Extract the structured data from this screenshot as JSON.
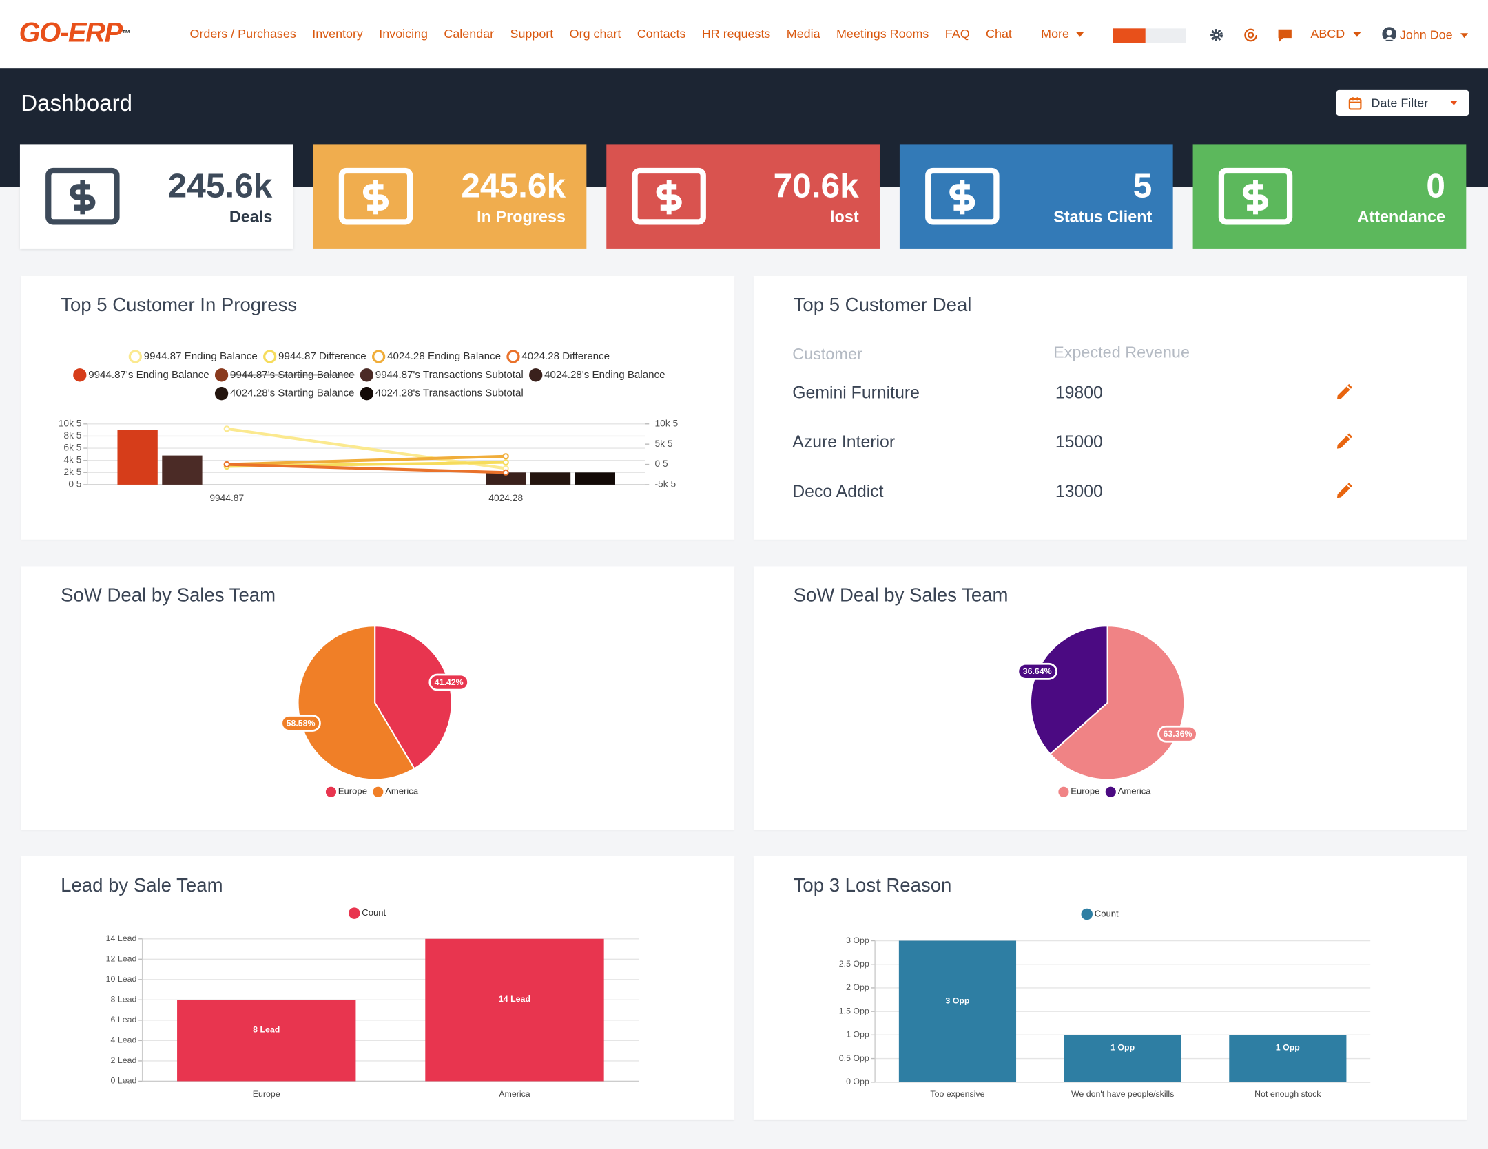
{
  "nav": {
    "logo": "GO-ERP",
    "logo_mark": "™",
    "menu": [
      "Orders / Purchases",
      "Inventory",
      "Invoicing",
      "Calendar",
      "Support",
      "Org chart",
      "Contacts",
      "HR requests",
      "Media",
      "Meetings Rooms",
      "FAQ",
      "Chat"
    ],
    "more": "More",
    "company": "ABCD",
    "user": "John Doe"
  },
  "header": {
    "title": "Dashboard",
    "date_filter": "Date Filter"
  },
  "stats": [
    {
      "value": "245.6k",
      "label": "Deals"
    },
    {
      "value": "245.6k",
      "label": "In Progress"
    },
    {
      "value": "70.6k",
      "label": "lost"
    },
    {
      "value": "5",
      "label": "Status Client"
    },
    {
      "value": "0",
      "label": "Attendance"
    }
  ],
  "top_customer_deal": {
    "title": "Top 5 Customer Deal",
    "columns": [
      "Customer",
      "Expected Revenue"
    ],
    "rows": [
      [
        "Gemini Furniture",
        19800
      ],
      [
        "Azure Interior",
        15000
      ],
      [
        "Deco Addict",
        13000
      ]
    ]
  },
  "chart_data": [
    {
      "type": "bar",
      "title": "Top 5 Customer In Progress",
      "categories": [
        "9944.87",
        "4024.28"
      ],
      "series": [
        {
          "name": "9944.87 Ending Balance",
          "type": "line",
          "axis": "y2",
          "color": "#fbe98f",
          "values": [
            8800,
            -1000
          ]
        },
        {
          "name": "9944.87 Difference",
          "type": "line",
          "axis": "y2",
          "color": "#f6dc5c",
          "values": [
            -500,
            500
          ]
        },
        {
          "name": "4024.28 Ending Balance",
          "type": "line",
          "axis": "y2",
          "color": "#f0ad3a",
          "values": [
            0,
            2000
          ]
        },
        {
          "name": "4024.28 Difference",
          "type": "line",
          "axis": "y2",
          "color": "#e9722b",
          "values": [
            0,
            -2000
          ]
        },
        {
          "name": "9944.87's Ending Balance",
          "color": "#d63d1a",
          "values": [
            9000,
            null
          ]
        },
        {
          "name": "9944.87's Starting Balance",
          "color": "#8a3a1e",
          "hidden": true,
          "values": [
            null,
            null
          ]
        },
        {
          "name": "9944.87's Transactions Subtotal",
          "color": "#4b2b26",
          "values": [
            4800,
            null
          ]
        },
        {
          "name": "4024.28's Ending Balance",
          "color": "#3a211c",
          "values": [
            null,
            2000
          ]
        },
        {
          "name": "4024.28's Starting Balance",
          "color": "#24150f",
          "values": [
            null,
            2000
          ]
        },
        {
          "name": "4024.28's Transactions Subtotal",
          "color": "#130a07",
          "values": [
            null,
            2000
          ]
        }
      ],
      "ylim": [
        0,
        10000
      ],
      "yticks": [
        {
          "value": 0,
          "label": "0 5"
        },
        {
          "value": 2000,
          "label": "2k 5"
        },
        {
          "value": 4000,
          "label": "4k 5"
        },
        {
          "value": 6000,
          "label": "6k 5"
        },
        {
          "value": 8000,
          "label": "8k 5"
        },
        {
          "value": 10000,
          "label": "10k 5"
        }
      ],
      "y2lim": [
        -5000,
        10000
      ],
      "y2ticks": [
        {
          "value": -5000,
          "label": "-5k 5"
        },
        {
          "value": 0,
          "label": "0 5"
        },
        {
          "value": 5000,
          "label": "5k 5"
        },
        {
          "value": 10000,
          "label": "10k 5"
        }
      ],
      "grid": true
    },
    {
      "type": "pie",
      "title": "SoW Deal by Sales Team",
      "categories": [
        "Europe",
        "America"
      ],
      "values": [
        41.42,
        58.58
      ],
      "value_labels": [
        "41.42%",
        "58.58%"
      ],
      "colors": [
        "#e8354f",
        "#f07f27"
      ]
    },
    {
      "type": "pie",
      "title": "SoW Deal by Sales Team",
      "categories": [
        "Europe",
        "America"
      ],
      "values": [
        63.36,
        36.64
      ],
      "value_labels": [
        "63.36%",
        "36.64%"
      ],
      "colors": [
        "#f08385",
        "#4b0a82"
      ]
    },
    {
      "type": "bar",
      "title": "Lead by Sale Team",
      "categories": [
        "Europe",
        "America"
      ],
      "series": [
        {
          "name": "Count",
          "color": "#e8354f",
          "values": [
            8,
            14
          ],
          "value_labels": [
            "8 Lead",
            "14 Lead"
          ]
        }
      ],
      "ylim": [
        0,
        14
      ],
      "yticks": [
        {
          "value": 0,
          "label": "0 Lead"
        },
        {
          "value": 2,
          "label": "2 Lead"
        },
        {
          "value": 4,
          "label": "4 Lead"
        },
        {
          "value": 6,
          "label": "6 Lead"
        },
        {
          "value": 8,
          "label": "8 Lead"
        },
        {
          "value": 10,
          "label": "10 Lead"
        },
        {
          "value": 12,
          "label": "12 Lead"
        },
        {
          "value": 14,
          "label": "14 Lead"
        }
      ],
      "grid": true
    },
    {
      "type": "bar",
      "title": "Top 3 Lost Reason",
      "categories": [
        "Too expensive",
        "We don't have people/skills",
        "Not enough stock"
      ],
      "series": [
        {
          "name": "Count",
          "color": "#2e7ea3",
          "values": [
            3,
            1,
            1
          ],
          "value_labels": [
            "3 Opp",
            "1 Opp",
            "1 Opp"
          ]
        }
      ],
      "ylim": [
        0,
        3
      ],
      "yticks": [
        {
          "value": 0,
          "label": "0 Opp"
        },
        {
          "value": 0.5,
          "label": "0.5 Opp"
        },
        {
          "value": 1,
          "label": "1 Opp"
        },
        {
          "value": 1.5,
          "label": "1.5 Opp"
        },
        {
          "value": 2,
          "label": "2 Opp"
        },
        {
          "value": 2.5,
          "label": "2.5 Opp"
        },
        {
          "value": 3,
          "label": "3 Opp"
        }
      ],
      "grid": true
    }
  ]
}
